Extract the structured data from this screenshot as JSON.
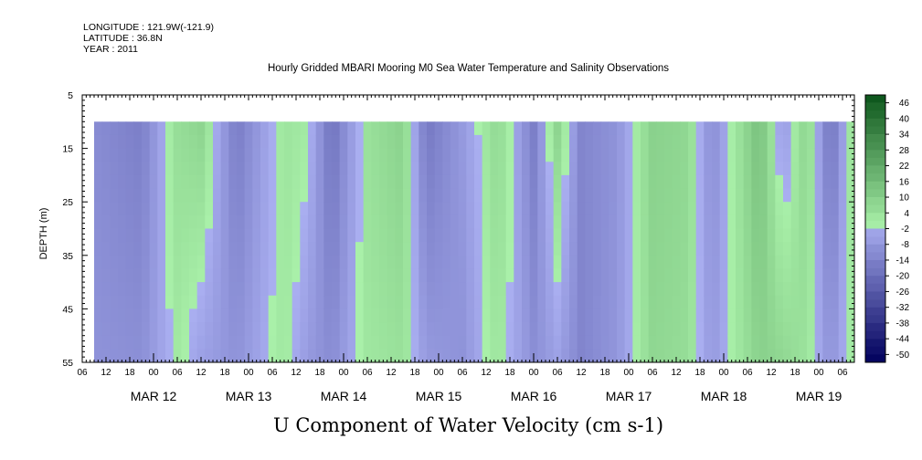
{
  "header": {
    "longitude": "LONGITUDE : 121.9W(-121.9)",
    "latitude": "LATITUDE : 36.8N",
    "year": "YEAR : 2011"
  },
  "chart_data": {
    "type": "heatmap",
    "title": "Hourly Gridded MBARI Mooring M0 Sea Water Temperature and Salinity Observations",
    "xlabel": "U Component of Water Velocity (cm s-1)",
    "ylabel": "DEPTH (m)",
    "ylim": [
      55,
      5
    ],
    "y_ticks": [
      "5",
      "15",
      "25",
      "35",
      "45",
      "55"
    ],
    "depth_range": [
      10,
      55
    ],
    "x_range": [
      "2011-03-11 06:00",
      "2011-03-19 09:00"
    ],
    "data_start": "2011-03-11 09:00",
    "x_hour_ticks": [
      "06",
      "12",
      "18",
      "00",
      "06",
      "12",
      "18",
      "00",
      "06",
      "12",
      "18",
      "00",
      "06",
      "12",
      "18",
      "00",
      "06",
      "12",
      "18",
      "00",
      "06",
      "12",
      "18",
      "00",
      "06",
      "12",
      "18",
      "00",
      "06",
      "12",
      "18",
      "00",
      "06"
    ],
    "x_day_labels": [
      "MAR 12",
      "MAR 13",
      "MAR 14",
      "MAR 15",
      "MAR 16",
      "MAR 17",
      "MAR 18",
      "MAR 19"
    ],
    "colorbar": {
      "levels": [
        "46",
        "40",
        "34",
        "28",
        "22",
        "16",
        "10",
        "4",
        "-2",
        "-8",
        "-14",
        "-20",
        "-26",
        "-32",
        "-38",
        "-44",
        "-50"
      ],
      "min": -50,
      "max": 52,
      "low_color": "#050560",
      "mid_low_color": "#a9aef0",
      "mid_high_color": "#a9f0a9",
      "high_color": "#064f15"
    },
    "column_profile": [
      {
        "date": "2011-03-11 09:00",
        "surface": -10,
        "bottom": -8
      },
      {
        "date": "2011-03-11 21:00",
        "surface": -14,
        "bottom": -9
      },
      {
        "date": "2011-03-12 06:00",
        "surface": 6,
        "bottom": 2
      },
      {
        "date": "2011-03-12 12:00",
        "surface": 9,
        "bottom": -4
      },
      {
        "date": "2011-03-12 21:00",
        "surface": -15,
        "bottom": -8
      },
      {
        "date": "2011-03-13 09:00",
        "surface": 4,
        "bottom": 3
      },
      {
        "date": "2011-03-13 15:00",
        "surface": 2,
        "bottom": -6
      },
      {
        "date": "2011-03-13 21:00",
        "surface": -18,
        "bottom": -10
      },
      {
        "date": "2011-03-14 06:00",
        "surface": 5,
        "bottom": 3
      },
      {
        "date": "2011-03-14 15:00",
        "surface": 10,
        "bottom": 5
      },
      {
        "date": "2011-03-14 21:00",
        "surface": -16,
        "bottom": -6
      },
      {
        "date": "2011-03-15 06:00",
        "surface": -6,
        "bottom": -8
      },
      {
        "date": "2011-03-15 15:00",
        "surface": 8,
        "bottom": 4
      },
      {
        "date": "2011-03-16 00:00",
        "surface": -14,
        "bottom": -9
      },
      {
        "date": "2011-03-16 06:00",
        "surface": 9,
        "bottom": -4
      },
      {
        "date": "2011-03-16 12:00",
        "surface": -12,
        "bottom": -12
      },
      {
        "date": "2011-03-16 21:00",
        "surface": -8,
        "bottom": -7
      },
      {
        "date": "2011-03-17 06:00",
        "surface": 10,
        "bottom": 8
      },
      {
        "date": "2011-03-17 15:00",
        "surface": 8,
        "bottom": 6
      },
      {
        "date": "2011-03-17 21:00",
        "surface": -10,
        "bottom": -6
      },
      {
        "date": "2011-03-18 09:00",
        "surface": 16,
        "bottom": 10
      },
      {
        "date": "2011-03-18 15:00",
        "surface": -6,
        "bottom": 8
      },
      {
        "date": "2011-03-18 21:00",
        "surface": 10,
        "bottom": 4
      },
      {
        "date": "2011-03-19 03:00",
        "surface": -18,
        "bottom": -8
      },
      {
        "date": "2011-03-19 09:00",
        "surface": 8,
        "bottom": 4
      }
    ]
  }
}
